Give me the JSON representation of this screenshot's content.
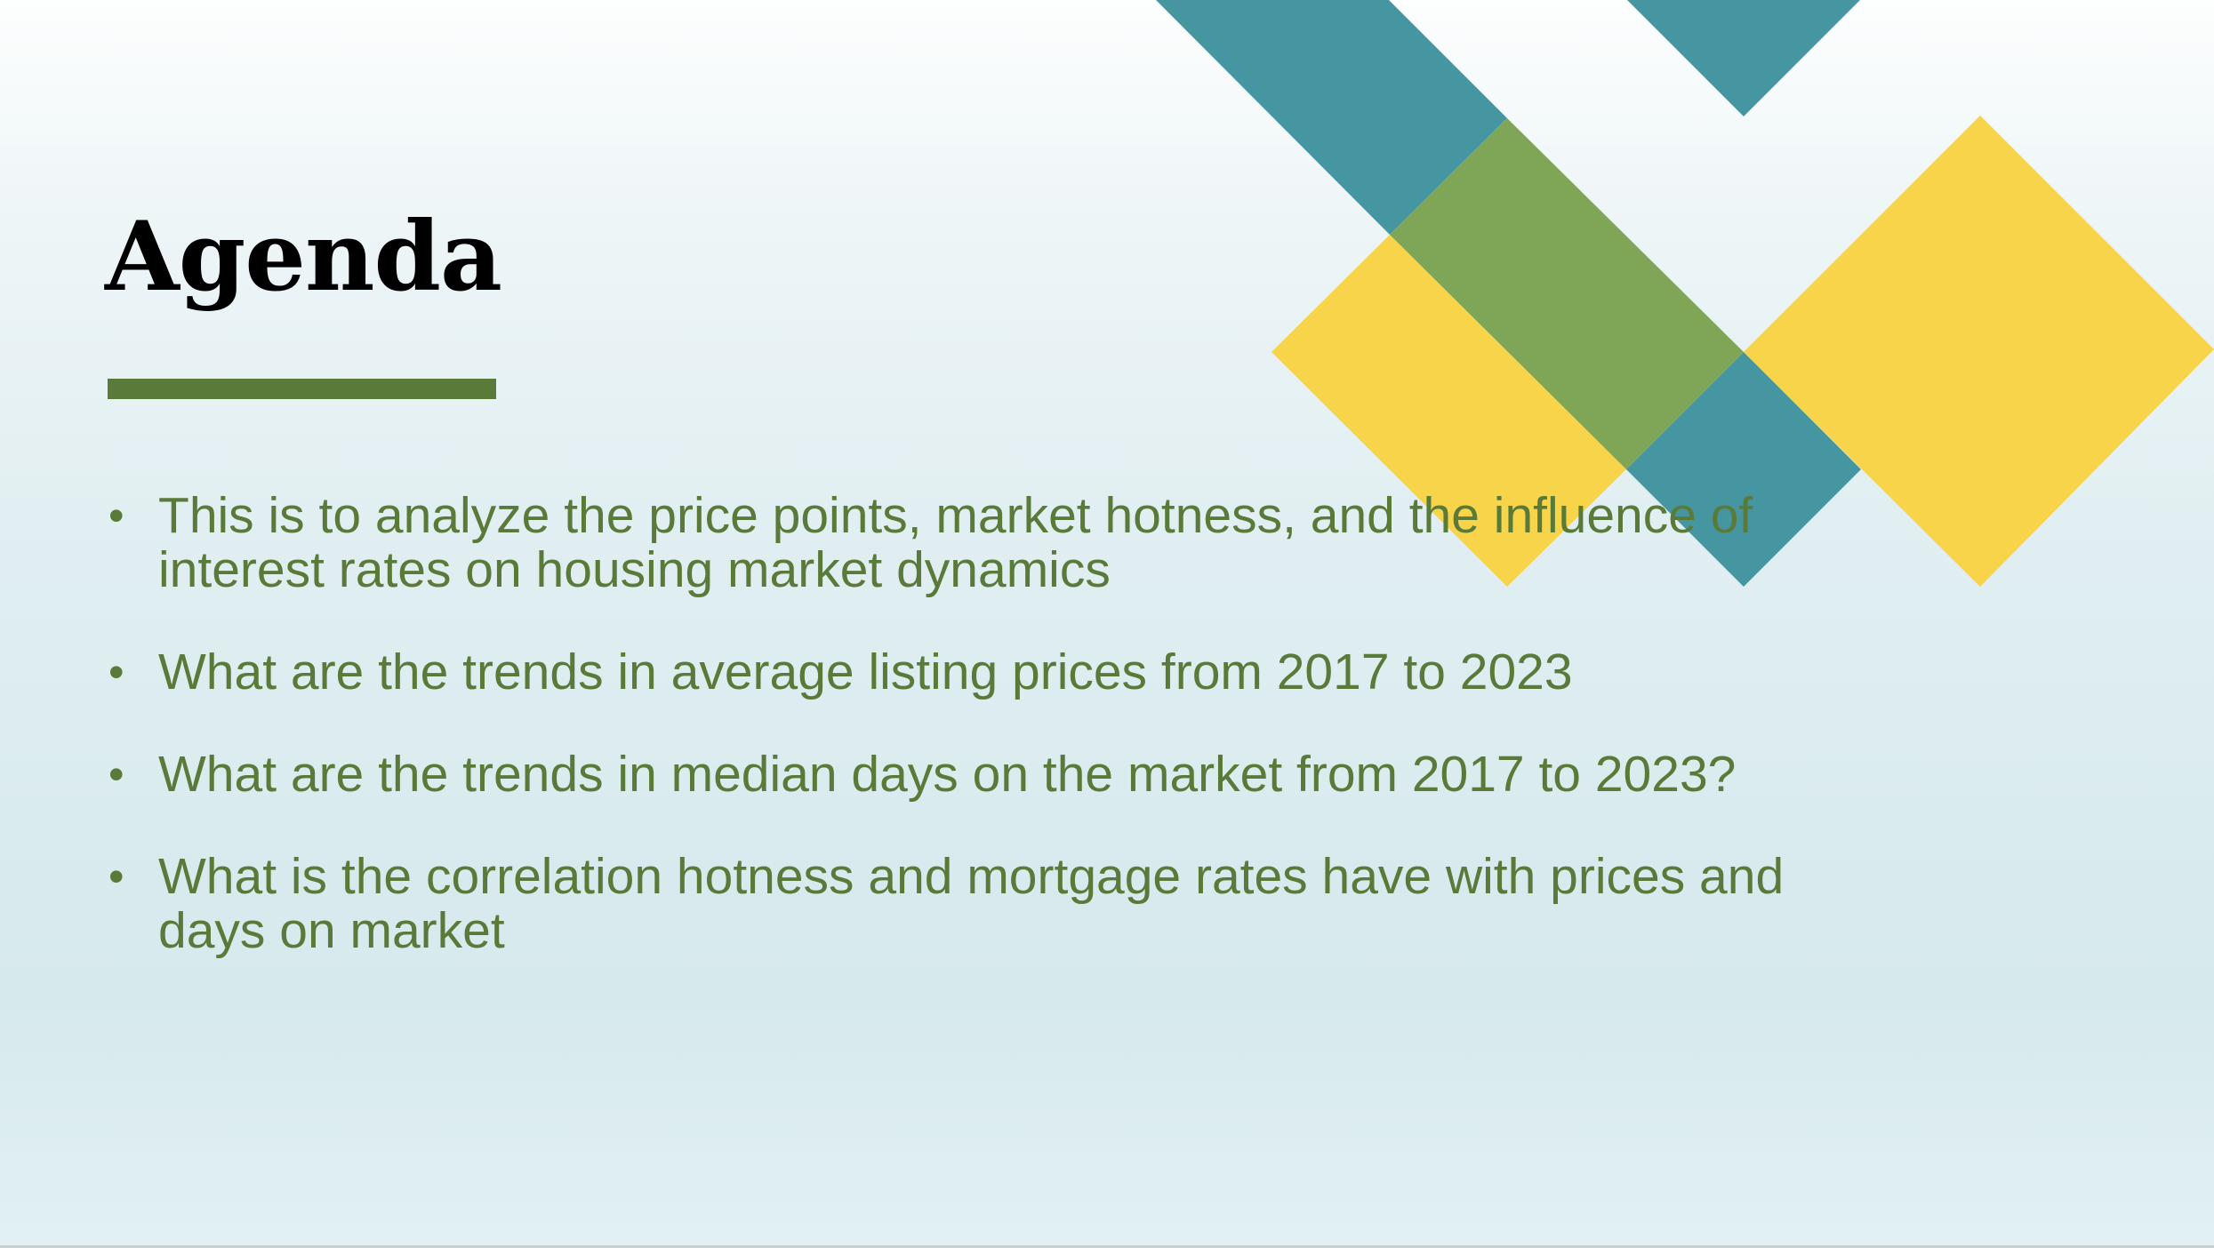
{
  "slide": {
    "title": "Agenda",
    "bullets": [
      {
        "marker": "•",
        "text": "This is to analyze the price points, market hotness, and the influence of interest rates on housing market dynamics"
      },
      {
        "marker": "•",
        "text": " What are the trends in average listing prices from 2017 to 2023"
      },
      {
        "marker": "•",
        "text": " What are the trends in median days on the market from 2017 to 2023?"
      },
      {
        "marker": "•",
        "text": "What is the correlation hotness and mortgage rates have with prices and days on market"
      }
    ]
  },
  "colors": {
    "accent_green": "#5a7a3a",
    "teal": "#4696a2",
    "yellow": "#f8d44a",
    "overlap_green": "#7fa656",
    "title_text": "#000000"
  }
}
